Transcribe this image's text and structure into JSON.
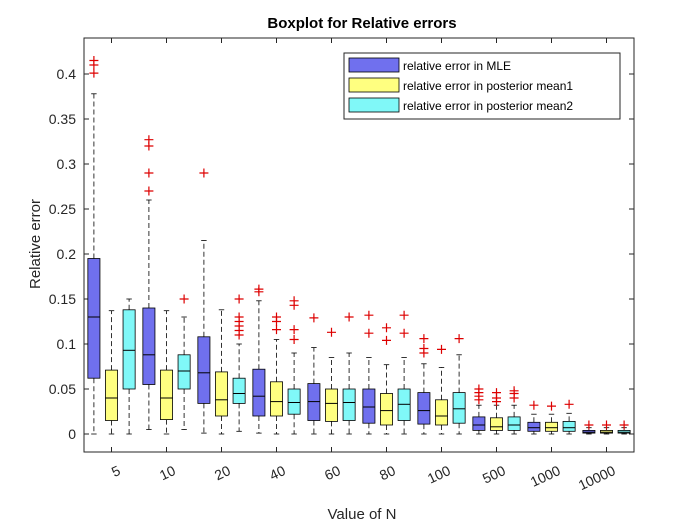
{
  "chart_data": {
    "type": "boxplot",
    "title": "Boxplot for Relative errors",
    "xlabel": "Value of N",
    "ylabel": "Relative error",
    "ylim": [
      -0.02,
      0.44
    ],
    "yticks": [
      0,
      0.05,
      0.1,
      0.15,
      0.2,
      0.25,
      0.3,
      0.35,
      0.4
    ],
    "ytick_labels": [
      "0",
      "0.05",
      "0.1",
      "0.15",
      "0.2",
      "0.25",
      "0.3",
      "0.35",
      "0.4"
    ],
    "categories": [
      "5",
      "10",
      "20",
      "40",
      "60",
      "80",
      "100",
      "500",
      "1000",
      "10000"
    ],
    "outlier_color": "#dd0000",
    "legend_position": "top-right",
    "series": [
      {
        "name": "relative error in MLE",
        "color": "#7070ee",
        "boxes": [
          {
            "whisker_low": 0.0,
            "q1": 0.062,
            "median": 0.13,
            "q3": 0.195,
            "whisker_high": 0.378,
            "outliers": [
              0.401,
              0.41,
              0.415
            ]
          },
          {
            "whisker_low": 0.005,
            "q1": 0.055,
            "median": 0.088,
            "q3": 0.14,
            "whisker_high": 0.26,
            "outliers": [
              0.27,
              0.29,
              0.32,
              0.327
            ]
          },
          {
            "whisker_low": 0.001,
            "q1": 0.034,
            "median": 0.068,
            "q3": 0.108,
            "whisker_high": 0.215,
            "outliers": [
              0.29
            ]
          },
          {
            "whisker_low": 0.001,
            "q1": 0.02,
            "median": 0.042,
            "q3": 0.072,
            "whisker_high": 0.148,
            "outliers": [
              0.158,
              0.161
            ]
          },
          {
            "whisker_low": 0.0,
            "q1": 0.015,
            "median": 0.036,
            "q3": 0.056,
            "whisker_high": 0.096,
            "outliers": [
              0.129
            ]
          },
          {
            "whisker_low": 0.0,
            "q1": 0.012,
            "median": 0.03,
            "q3": 0.05,
            "whisker_high": 0.085,
            "outliers": [
              0.112,
              0.132
            ]
          },
          {
            "whisker_low": 0.0,
            "q1": 0.011,
            "median": 0.026,
            "q3": 0.046,
            "whisker_high": 0.078,
            "outliers": [
              0.09,
              0.095,
              0.106
            ]
          },
          {
            "whisker_low": 0.0,
            "q1": 0.004,
            "median": 0.01,
            "q3": 0.019,
            "whisker_high": 0.032,
            "outliers": [
              0.038,
              0.042,
              0.046,
              0.05
            ]
          },
          {
            "whisker_low": 0.0,
            "q1": 0.003,
            "median": 0.007,
            "q3": 0.013,
            "whisker_high": 0.022,
            "outliers": [
              0.032
            ]
          },
          {
            "whisker_low": 0.0,
            "q1": 0.001,
            "median": 0.002,
            "q3": 0.004,
            "whisker_high": 0.007,
            "outliers": [
              0.01
            ]
          }
        ]
      },
      {
        "name": "relative error in posterior mean1",
        "color": "#ffff80",
        "boxes": [
          {
            "whisker_low": 0.0,
            "q1": 0.015,
            "median": 0.04,
            "q3": 0.071,
            "whisker_high": 0.137,
            "outliers": []
          },
          {
            "whisker_low": 0.0,
            "q1": 0.016,
            "median": 0.04,
            "q3": 0.071,
            "whisker_high": 0.137,
            "outliers": []
          },
          {
            "whisker_low": 0.0,
            "q1": 0.02,
            "median": 0.038,
            "q3": 0.069,
            "whisker_high": 0.138,
            "outliers": []
          },
          {
            "whisker_low": 0.0,
            "q1": 0.02,
            "median": 0.036,
            "q3": 0.058,
            "whisker_high": 0.105,
            "outliers": [
              0.116,
              0.125,
              0.13
            ]
          },
          {
            "whisker_low": 0.0,
            "q1": 0.014,
            "median": 0.034,
            "q3": 0.05,
            "whisker_high": 0.085,
            "outliers": [
              0.113
            ]
          },
          {
            "whisker_low": 0.0,
            "q1": 0.01,
            "median": 0.026,
            "q3": 0.045,
            "whisker_high": 0.077,
            "outliers": [
              0.104,
              0.118
            ]
          },
          {
            "whisker_low": 0.0,
            "q1": 0.01,
            "median": 0.02,
            "q3": 0.038,
            "whisker_high": 0.074,
            "outliers": [
              0.094
            ]
          },
          {
            "whisker_low": 0.0,
            "q1": 0.004,
            "median": 0.008,
            "q3": 0.018,
            "whisker_high": 0.032,
            "outliers": [
              0.036,
              0.04,
              0.046
            ]
          },
          {
            "whisker_low": 0.0,
            "q1": 0.003,
            "median": 0.007,
            "q3": 0.013,
            "whisker_high": 0.022,
            "outliers": [
              0.031
            ]
          },
          {
            "whisker_low": 0.0,
            "q1": 0.001,
            "median": 0.002,
            "q3": 0.004,
            "whisker_high": 0.007,
            "outliers": [
              0.01
            ]
          }
        ]
      },
      {
        "name": "relative error in posterior mean2",
        "color": "#80f8f8",
        "boxes": [
          {
            "whisker_low": 0.0,
            "q1": 0.05,
            "median": 0.093,
            "q3": 0.138,
            "whisker_high": 0.15,
            "outliers": []
          },
          {
            "whisker_low": 0.005,
            "q1": 0.05,
            "median": 0.07,
            "q3": 0.088,
            "whisker_high": 0.13,
            "outliers": [
              0.15
            ]
          },
          {
            "whisker_low": 0.003,
            "q1": 0.034,
            "median": 0.045,
            "q3": 0.062,
            "whisker_high": 0.1,
            "outliers": [
              0.11,
              0.115,
              0.12,
              0.125,
              0.13,
              0.15
            ]
          },
          {
            "whisker_low": 0.0,
            "q1": 0.022,
            "median": 0.035,
            "q3": 0.05,
            "whisker_high": 0.09,
            "outliers": [
              0.105,
              0.116,
              0.143,
              0.148
            ]
          },
          {
            "whisker_low": 0.0,
            "q1": 0.015,
            "median": 0.035,
            "q3": 0.05,
            "whisker_high": 0.09,
            "outliers": [
              0.13
            ]
          },
          {
            "whisker_low": 0.0,
            "q1": 0.015,
            "median": 0.033,
            "q3": 0.05,
            "whisker_high": 0.085,
            "outliers": [
              0.112,
              0.132
            ]
          },
          {
            "whisker_low": 0.0,
            "q1": 0.012,
            "median": 0.028,
            "q3": 0.046,
            "whisker_high": 0.088,
            "outliers": [
              0.106
            ]
          },
          {
            "whisker_low": 0.0,
            "q1": 0.004,
            "median": 0.01,
            "q3": 0.019,
            "whisker_high": 0.032,
            "outliers": [
              0.04,
              0.045,
              0.048
            ]
          },
          {
            "whisker_low": 0.0,
            "q1": 0.003,
            "median": 0.007,
            "q3": 0.014,
            "whisker_high": 0.023,
            "outliers": [
              0.033
            ]
          },
          {
            "whisker_low": 0.0,
            "q1": 0.001,
            "median": 0.002,
            "q3": 0.004,
            "whisker_high": 0.007,
            "outliers": [
              0.01
            ]
          }
        ]
      }
    ]
  }
}
